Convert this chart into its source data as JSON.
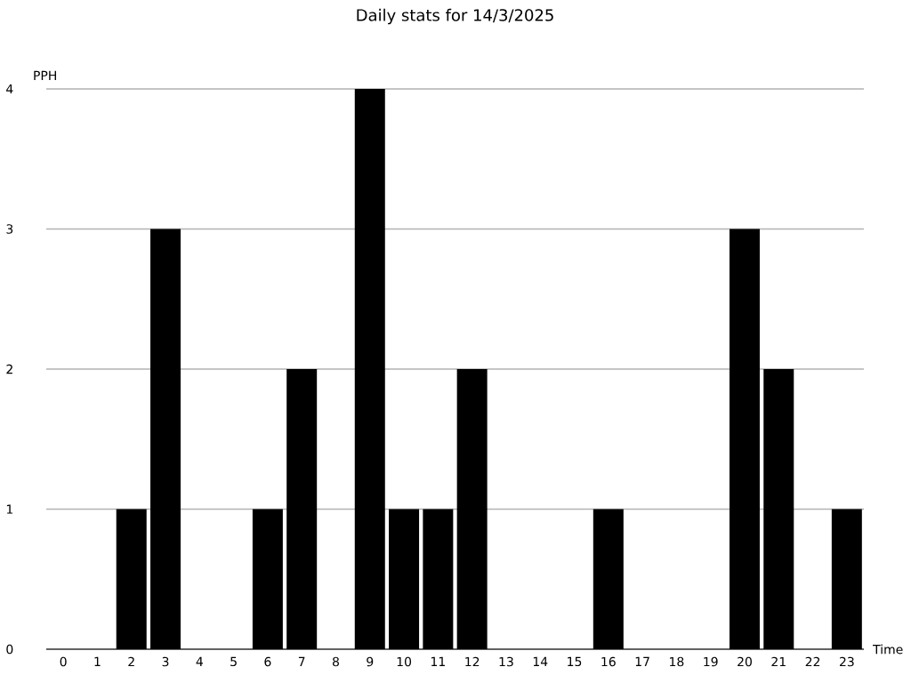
{
  "chart_data": {
    "type": "bar",
    "title": "Daily stats for 14/3/2025",
    "xlabel": "Time",
    "ylabel": "PPH",
    "categories": [
      "0",
      "1",
      "2",
      "3",
      "4",
      "5",
      "6",
      "7",
      "8",
      "9",
      "10",
      "11",
      "12",
      "13",
      "14",
      "15",
      "16",
      "17",
      "18",
      "19",
      "20",
      "21",
      "22",
      "23"
    ],
    "values": [
      0,
      0,
      1,
      3,
      0,
      0,
      1,
      2,
      0,
      4,
      1,
      1,
      2,
      0,
      0,
      0,
      1,
      0,
      0,
      0,
      3,
      2,
      0,
      1
    ],
    "color": "#000000",
    "ylim": [
      0,
      4
    ],
    "yticks": [
      0,
      1,
      2,
      3,
      4
    ],
    "grid": "y"
  }
}
